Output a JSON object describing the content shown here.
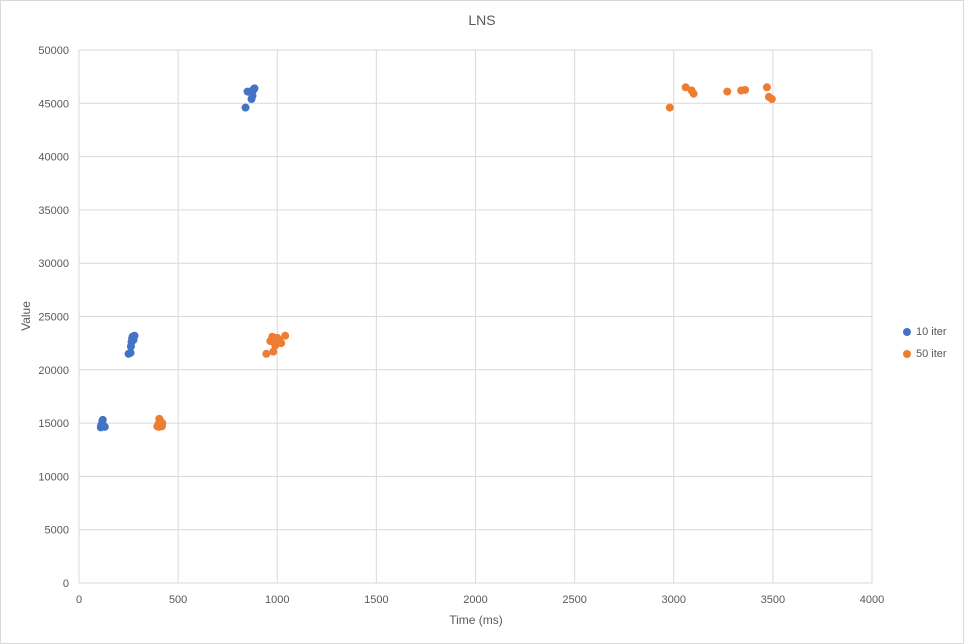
{
  "chart_data": {
    "type": "scatter",
    "title": "LNS",
    "xlabel": "Time (ms)",
    "ylabel": "Value",
    "xlim": [
      0,
      4000
    ],
    "ylim": [
      0,
      50000
    ],
    "xticks": [
      0,
      500,
      1000,
      1500,
      2000,
      2500,
      3000,
      3500,
      4000
    ],
    "yticks": [
      0,
      5000,
      10000,
      15000,
      20000,
      25000,
      30000,
      35000,
      40000,
      45000,
      50000
    ],
    "grid": true,
    "legend_position": "right",
    "series": [
      {
        "name": "10 iter",
        "color": "#4472C4",
        "points": [
          [
            110,
            14600
          ],
          [
            115,
            14900
          ],
          [
            118,
            15200
          ],
          [
            120,
            15300
          ],
          [
            125,
            14700
          ],
          [
            130,
            14650
          ],
          [
            112,
            14800
          ],
          [
            250,
            21500
          ],
          [
            260,
            21600
          ],
          [
            262,
            22200
          ],
          [
            265,
            22600
          ],
          [
            268,
            22900
          ],
          [
            270,
            23100
          ],
          [
            280,
            23200
          ],
          [
            275,
            22800
          ],
          [
            840,
            44600
          ],
          [
            850,
            46100
          ],
          [
            870,
            45400
          ],
          [
            875,
            45700
          ],
          [
            880,
            46300
          ],
          [
            885,
            46400
          ],
          [
            878,
            46200
          ]
        ]
      },
      {
        "name": "50 iter",
        "color": "#ED7D31",
        "points": [
          [
            395,
            14700
          ],
          [
            400,
            14900
          ],
          [
            405,
            15400
          ],
          [
            410,
            15200
          ],
          [
            415,
            14800
          ],
          [
            420,
            15000
          ],
          [
            402,
            14650
          ],
          [
            418,
            14700
          ],
          [
            945,
            21500
          ],
          [
            965,
            22700
          ],
          [
            975,
            23100
          ],
          [
            980,
            21700
          ],
          [
            990,
            22300
          ],
          [
            1000,
            23000
          ],
          [
            1010,
            22800
          ],
          [
            1020,
            22500
          ],
          [
            1040,
            23200
          ],
          [
            985,
            22600
          ],
          [
            2980,
            44600
          ],
          [
            3060,
            46500
          ],
          [
            3090,
            46200
          ],
          [
            3100,
            45900
          ],
          [
            3270,
            46100
          ],
          [
            3340,
            46200
          ],
          [
            3360,
            46250
          ],
          [
            3470,
            46500
          ],
          [
            3480,
            45600
          ],
          [
            3495,
            45400
          ]
        ]
      }
    ]
  }
}
